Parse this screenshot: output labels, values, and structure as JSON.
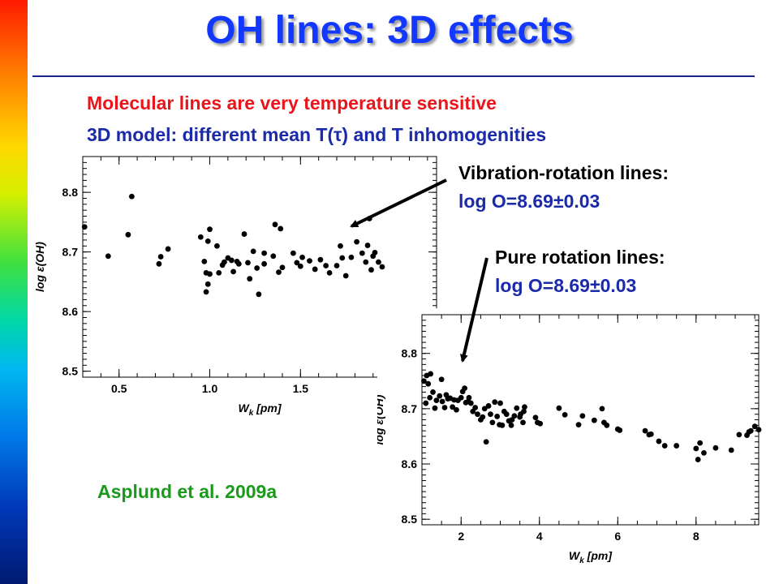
{
  "slide": {
    "title": "OH lines: 3D effects",
    "line1": "Molecular lines are very temperature sensitive",
    "line2": "3D model: different mean T(τ) and T inhomogenities",
    "vib_heading": "Vibration-rotation lines:",
    "vib_value": "log O=8.69±0.03",
    "rot_heading": "Pure rotation lines:",
    "rot_value": "log O=8.69±0.03",
    "credit": "Asplund et al. 2009a",
    "colors": {
      "title": "#1238ff",
      "red_text": "#e8151b",
      "blue_text": "#1a2aa8",
      "green_text": "#1a9a1a"
    }
  },
  "chart_data": [
    {
      "type": "scatter",
      "ylabel": "log ε(OH)",
      "xlabel": "Wk [pm]",
      "xlim": [
        0.3,
        2.25
      ],
      "ylim": [
        8.49,
        8.86
      ],
      "xticks": [
        0.5,
        1.0,
        1.5
      ],
      "yticks": [
        8.5,
        8.6,
        8.7,
        8.8
      ],
      "x": [
        0.31,
        0.44,
        0.55,
        0.57,
        0.72,
        0.73,
        0.77,
        0.95,
        0.97,
        0.98,
        0.98,
        0.99,
        0.99,
        1.0,
        1.0,
        1.04,
        1.05,
        1.07,
        1.08,
        1.1,
        1.12,
        1.13,
        1.15,
        1.16,
        1.19,
        1.21,
        1.22,
        1.24,
        1.26,
        1.27,
        1.3,
        1.3,
        1.35,
        1.36,
        1.38,
        1.39,
        1.4,
        1.46,
        1.48,
        1.5,
        1.51,
        1.55,
        1.58,
        1.61,
        1.64,
        1.66,
        1.7,
        1.72,
        1.73,
        1.75,
        1.78,
        1.81,
        1.84,
        1.86,
        1.87,
        1.88,
        1.89,
        1.9,
        1.91,
        1.93,
        1.95
      ],
      "y": [
        8.742,
        8.693,
        8.729,
        8.793,
        8.68,
        8.692,
        8.705,
        8.725,
        8.684,
        8.665,
        8.633,
        8.646,
        8.718,
        8.738,
        8.663,
        8.71,
        8.665,
        8.678,
        8.683,
        8.69,
        8.686,
        8.667,
        8.684,
        8.68,
        8.73,
        8.682,
        8.655,
        8.701,
        8.673,
        8.629,
        8.698,
        8.68,
        8.693,
        8.746,
        8.666,
        8.739,
        8.674,
        8.698,
        8.682,
        8.676,
        8.691,
        8.685,
        8.671,
        8.687,
        8.677,
        8.665,
        8.677,
        8.71,
        8.69,
        8.66,
        8.691,
        8.717,
        8.698,
        8.683,
        8.711,
        8.756,
        8.67,
        8.693,
        8.699,
        8.683,
        8.675
      ]
    },
    {
      "type": "scatter",
      "ylabel": "log ε(OH)",
      "xlabel": "Wk [pm]",
      "xlim": [
        1.0,
        9.6
      ],
      "ylim": [
        8.49,
        8.87
      ],
      "xticks": [
        2,
        4,
        6,
        8
      ],
      "yticks": [
        8.5,
        8.6,
        8.7,
        8.8
      ],
      "x": [
        1.05,
        1.1,
        1.12,
        1.16,
        1.2,
        1.22,
        1.28,
        1.33,
        1.37,
        1.45,
        1.5,
        1.52,
        1.58,
        1.62,
        1.66,
        1.72,
        1.78,
        1.82,
        1.88,
        1.92,
        2.0,
        2.04,
        2.09,
        2.12,
        2.18,
        2.2,
        2.25,
        2.3,
        2.36,
        2.42,
        2.5,
        2.55,
        2.6,
        2.64,
        2.7,
        2.75,
        2.8,
        2.86,
        2.92,
        2.98,
        3.0,
        3.05,
        3.1,
        3.16,
        3.22,
        3.28,
        3.3,
        3.36,
        3.42,
        3.5,
        3.52,
        3.58,
        3.6,
        3.62,
        3.9,
        3.95,
        4.02,
        4.5,
        4.65,
        5.0,
        5.1,
        5.4,
        5.6,
        5.65,
        5.72,
        6.0,
        6.05,
        6.7,
        6.8,
        6.85,
        7.05,
        7.2,
        7.5,
        8.0,
        8.05,
        8.1,
        8.2,
        8.5,
        8.9,
        9.1,
        9.3,
        9.35,
        9.4,
        9.5,
        9.6
      ],
      "y": [
        8.75,
        8.71,
        8.76,
        8.745,
        8.72,
        8.763,
        8.73,
        8.701,
        8.715,
        8.723,
        8.753,
        8.713,
        8.702,
        8.725,
        8.718,
        8.719,
        8.703,
        8.716,
        8.698,
        8.715,
        8.72,
        8.731,
        8.737,
        8.711,
        8.713,
        8.72,
        8.71,
        8.695,
        8.702,
        8.69,
        8.68,
        8.685,
        8.7,
        8.64,
        8.705,
        8.69,
        8.675,
        8.712,
        8.686,
        8.671,
        8.71,
        8.67,
        8.695,
        8.69,
        8.678,
        8.67,
        8.68,
        8.687,
        8.701,
        8.685,
        8.69,
        8.675,
        8.695,
        8.703,
        8.684,
        8.675,
        8.673,
        8.701,
        8.689,
        8.671,
        8.687,
        8.679,
        8.7,
        8.675,
        8.67,
        8.663,
        8.661,
        8.66,
        8.653,
        8.654,
        8.641,
        8.633,
        8.633,
        8.628,
        8.608,
        8.638,
        8.62,
        8.629,
        8.625,
        8.653,
        8.652,
        8.658,
        8.66,
        8.668,
        8.662
      ],
      "comment_unused": ""
    }
  ]
}
